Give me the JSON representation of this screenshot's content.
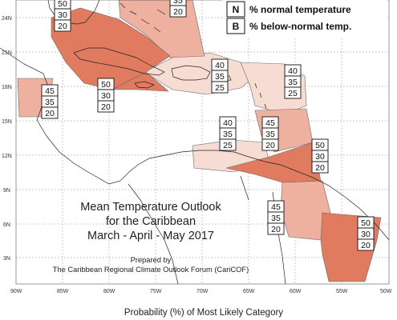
{
  "map": {
    "title_lines": [
      "Mean Temperature Outlook",
      "for the Caribbean",
      "March - April - May 2017"
    ],
    "prepared_lines": [
      "Prepared by",
      "The Caribbean Regional Climate Outlook Forum (CariCOF)"
    ],
    "footer": "Probability (%) of Most Likely Category",
    "legend": [
      {
        "letter": "N",
        "text": "% normal temperature"
      },
      {
        "letter": "B",
        "text": "% below-normal temp."
      }
    ],
    "lat_ticks": [
      "24N",
      "21N",
      "18N",
      "15N",
      "12N",
      "9N",
      "6N",
      "3N"
    ],
    "lon_ticks": [
      "90W",
      "85W",
      "80W",
      "75W",
      "70W",
      "65W",
      "60W",
      "55W",
      "50W"
    ],
    "colors": {
      "light": "#f6dcd3",
      "medium": "#eeb19f",
      "dark": "#e07b60"
    },
    "forecast_boxes": [
      {
        "region": "bahamas-west",
        "values": [
          "50",
          "30",
          "20"
        ]
      },
      {
        "region": "turks-caicos",
        "values": [
          "35",
          "20"
        ]
      },
      {
        "region": "belize",
        "values": [
          "45",
          "35",
          "20"
        ]
      },
      {
        "region": "cuba-jamaica",
        "values": [
          "50",
          "30",
          "20"
        ]
      },
      {
        "region": "hispaniola-pr",
        "values": [
          "40",
          "35",
          "25"
        ]
      },
      {
        "region": "leeward-islands",
        "values": [
          "40",
          "35",
          "25"
        ]
      },
      {
        "region": "caribbean-sea",
        "values": [
          "40",
          "35",
          "25"
        ]
      },
      {
        "region": "windward-islands",
        "values": [
          "45",
          "35",
          "20"
        ]
      },
      {
        "region": "trinidad",
        "values": [
          "50",
          "30",
          "20"
        ]
      },
      {
        "region": "guyana",
        "values": [
          "45",
          "35",
          "20"
        ]
      },
      {
        "region": "suriname-guiana",
        "values": [
          "50",
          "30",
          "20"
        ]
      }
    ]
  }
}
